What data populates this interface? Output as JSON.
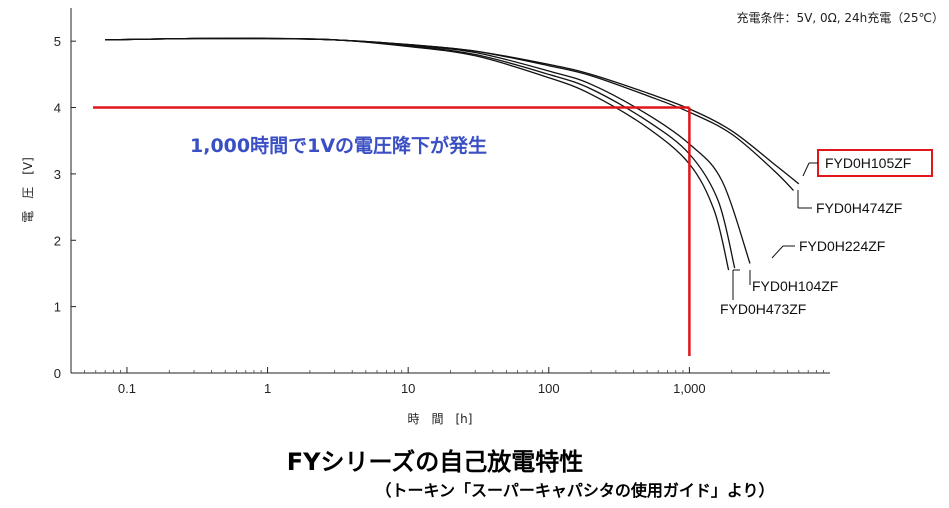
{
  "chart_data": {
    "type": "line",
    "title": "FYシリーズの自己放電特性",
    "subtitle": "（トーキン「スーパーキャパシタの使用ガイド」より）",
    "condition_note": "充電条件：5V, 0Ω, 24h充電（25℃）",
    "xlabel": "時　間　[h]",
    "ylabel": "電　圧　[V]",
    "x_scale": "log",
    "xlim": [
      0.04,
      10000
    ],
    "ylim": [
      0,
      5.5
    ],
    "x_ticks": [
      0.1,
      1,
      10,
      100,
      1000
    ],
    "x_tick_labels": [
      "0.1",
      "1",
      "10",
      "100",
      "1,000"
    ],
    "y_ticks": [
      0,
      1,
      2,
      3,
      4,
      5
    ],
    "y_tick_labels": [
      "0",
      "1",
      "2",
      "3",
      "4",
      "5"
    ],
    "grid": false,
    "series": [
      {
        "name": "FYD0H105ZF",
        "highlight": true,
        "x": [
          0.07,
          0.3,
          1,
          3,
          10,
          30,
          100,
          200,
          500,
          1000,
          2000,
          4000,
          6000
        ],
        "y": [
          5.02,
          5.04,
          5.04,
          5.02,
          4.95,
          4.85,
          4.65,
          4.5,
          4.22,
          3.98,
          3.65,
          3.15,
          2.85
        ]
      },
      {
        "name": "FYD0H474ZF",
        "x": [
          0.07,
          0.3,
          1,
          3,
          10,
          30,
          100,
          200,
          500,
          1000,
          2000,
          4000,
          5500
        ],
        "y": [
          5.02,
          5.04,
          5.04,
          5.02,
          4.95,
          4.85,
          4.63,
          4.48,
          4.18,
          3.93,
          3.6,
          3.05,
          2.75
        ]
      },
      {
        "name": "FYD0H224ZF",
        "x": [
          0.07,
          0.3,
          1,
          3,
          10,
          30,
          100,
          200,
          500,
          1000,
          1700,
          2700
        ],
        "y": [
          5.02,
          5.04,
          5.04,
          5.02,
          4.94,
          4.83,
          4.55,
          4.35,
          3.9,
          3.45,
          2.9,
          1.65
        ]
      },
      {
        "name": "FYD0H104ZF",
        "x": [
          0.07,
          0.3,
          1,
          3,
          10,
          30,
          100,
          200,
          500,
          1000,
          1600,
          2100
        ],
        "y": [
          5.02,
          5.04,
          5.04,
          5.02,
          4.93,
          4.8,
          4.5,
          4.28,
          3.8,
          3.3,
          2.6,
          1.58
        ]
      },
      {
        "name": "FYD0H473ZF",
        "x": [
          0.07,
          0.3,
          1,
          3,
          10,
          30,
          100,
          200,
          500,
          1000,
          1500,
          1900
        ],
        "y": [
          5.02,
          5.04,
          5.04,
          5.02,
          4.92,
          4.78,
          4.45,
          4.2,
          3.7,
          3.15,
          2.45,
          1.55
        ]
      }
    ],
    "annotation": {
      "text": "1,000時間で1Vの電圧降下が発生",
      "color": "#3a4fc4",
      "marker_x": 1000,
      "marker_y": 4,
      "marker_color": "#e0161b"
    }
  }
}
